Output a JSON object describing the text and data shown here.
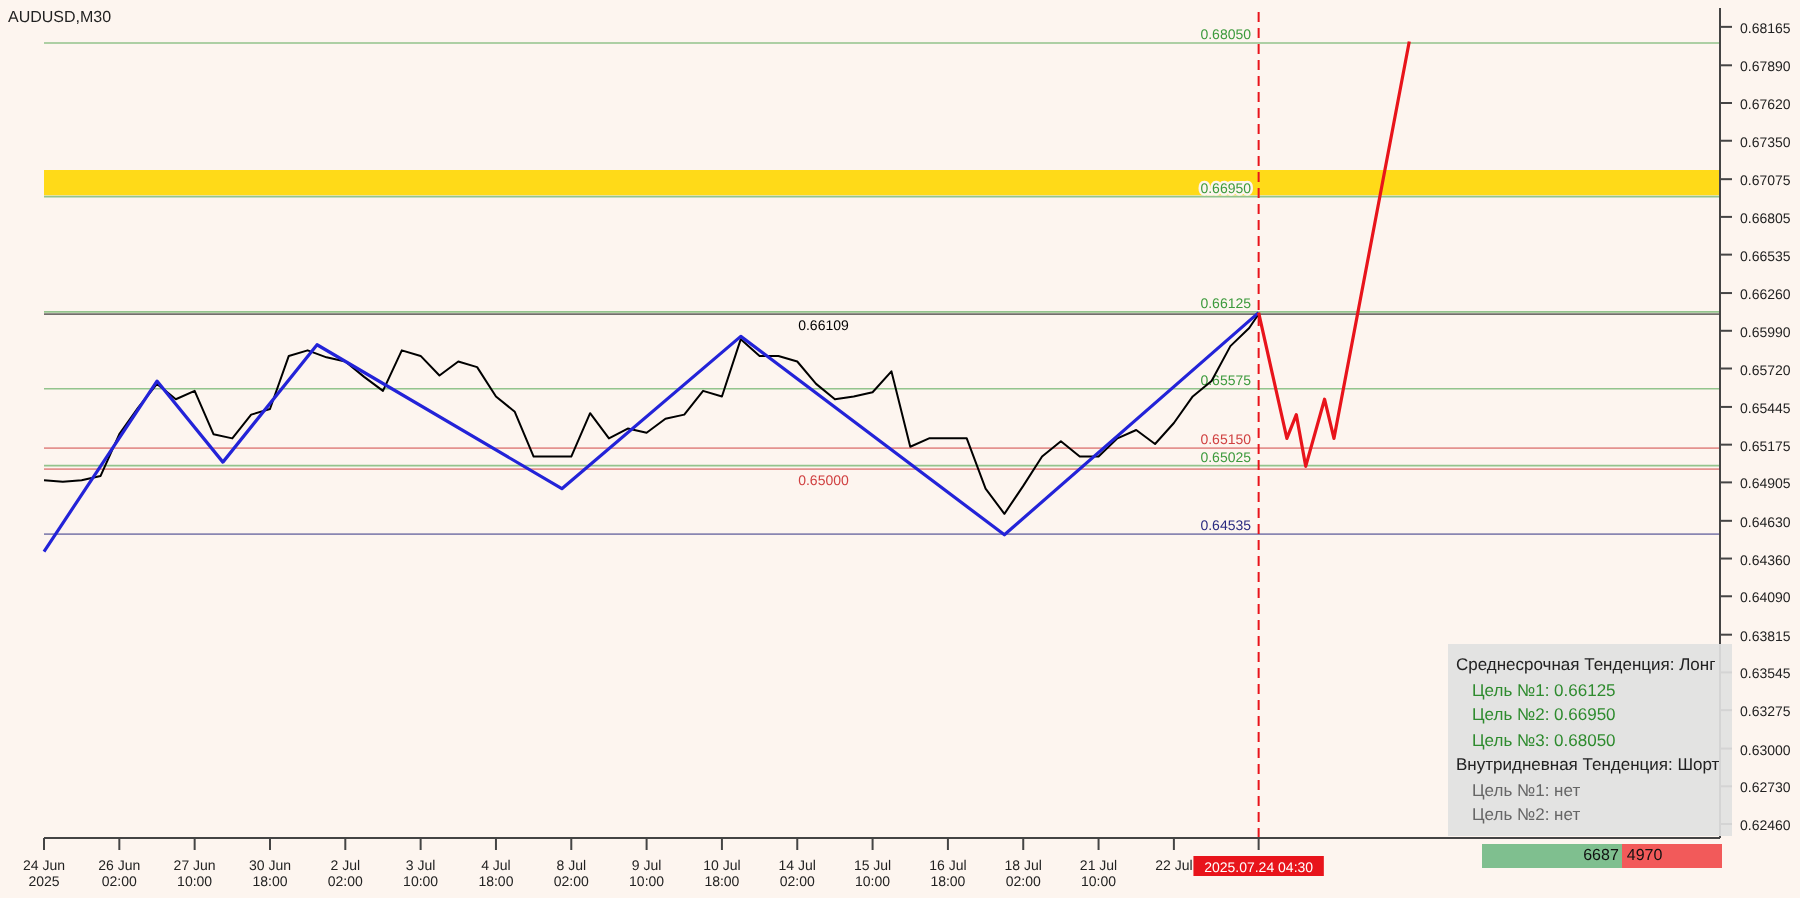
{
  "chart_data": {
    "type": "line",
    "title": "AUDUSD,M30",
    "categories": [
      "24 Jun 2025",
      null,
      null,
      null,
      null,
      null,
      null,
      null,
      "26 Jun 02:00",
      null,
      null,
      null,
      null,
      null,
      null,
      null,
      "27 Jun 10:00",
      null,
      null,
      null,
      null,
      null,
      null,
      null,
      "30 Jun 18:00",
      null,
      null,
      null,
      null,
      null,
      null,
      null,
      "2 Jul 02:00",
      null,
      null,
      null,
      null,
      null,
      null,
      null,
      "3 Jul 10:00",
      null,
      null,
      null,
      null,
      null,
      null,
      null,
      "4 Jul 18:00",
      null,
      null,
      null,
      null,
      null,
      null,
      null,
      "8 Jul 02:00",
      null,
      null,
      null,
      null,
      null,
      null,
      null,
      "9 Jul 10:00",
      null,
      null,
      null,
      null,
      null,
      null,
      null,
      "10 Jul 18:00",
      null,
      null,
      null,
      null,
      null,
      null,
      null,
      "14 Jul 02:00",
      null,
      null,
      null,
      null,
      null,
      null,
      null,
      "15 Jul 10:00",
      null,
      null,
      null,
      null,
      null,
      null,
      null,
      "16 Jul 18:00",
      null,
      null,
      null,
      null,
      null,
      null,
      null,
      "18 Jul 02:00",
      null,
      null,
      null,
      null,
      null,
      null,
      null,
      "21 Jul 10:00",
      null,
      null,
      null,
      null,
      null,
      null,
      null,
      "22 Jul",
      null,
      null,
      null,
      null,
      null,
      null,
      null,
      null,
      "2025.07.24 04:30",
      null,
      null,
      null,
      null,
      null,
      null,
      null,
      null,
      null,
      null,
      null,
      null,
      null,
      null,
      null,
      null,
      null,
      null,
      null,
      null,
      null,
      null,
      null,
      null,
      null,
      null,
      null,
      null,
      null,
      null,
      null,
      null,
      null,
      null,
      null,
      null,
      null,
      null,
      null,
      null,
      null,
      null,
      null,
      null,
      null,
      null,
      null,
      null,
      null
    ],
    "ylim": [
      0.6236,
      0.683
    ],
    "yticks": [
      {
        "value": 0.68165,
        "label": "0.68165"
      },
      {
        "value": 0.6789,
        "label": "0.67890"
      },
      {
        "value": 0.6762,
        "label": "0.67620"
      },
      {
        "value": 0.6735,
        "label": "0.67350"
      },
      {
        "value": 0.67075,
        "label": "0.67075"
      },
      {
        "value": 0.66805,
        "label": "0.66805"
      },
      {
        "value": 0.66535,
        "label": "0.66535"
      },
      {
        "value": 0.6626,
        "label": "0.66260"
      },
      {
        "value": 0.6599,
        "label": "0.65990"
      },
      {
        "value": 0.6572,
        "label": "0.65720"
      },
      {
        "value": 0.65445,
        "label": "0.65445"
      },
      {
        "value": 0.65175,
        "label": "0.65175"
      },
      {
        "value": 0.64905,
        "label": "0.64905"
      },
      {
        "value": 0.6463,
        "label": "0.64630"
      },
      {
        "value": 0.6436,
        "label": "0.64360"
      },
      {
        "value": 0.6409,
        "label": "0.64090"
      },
      {
        "value": 0.63815,
        "label": "0.63815"
      },
      {
        "value": 0.63545,
        "label": "0.63545"
      },
      {
        "value": 0.63275,
        "label": "0.63275"
      },
      {
        "value": 0.63,
        "label": "0.63000"
      },
      {
        "value": 0.6273,
        "label": "0.62730"
      },
      {
        "value": 0.6246,
        "label": "0.62460"
      }
    ],
    "series": [
      {
        "color": "#000000",
        "values": [
          0.6492,
          null,
          0.6491,
          null,
          0.6492,
          null,
          0.6495,
          null,
          0.6525,
          null,
          0.6544,
          null,
          0.6561,
          null,
          0.655,
          null,
          0.6556,
          null,
          0.6525,
          null,
          0.6522,
          null,
          0.6539,
          null,
          0.6543,
          null,
          0.6581,
          null,
          0.6585,
          null,
          0.658,
          null,
          0.6577,
          null,
          0.6566,
          null,
          0.6556,
          null,
          0.6585,
          null,
          0.6581,
          null,
          0.6567,
          null,
          0.6577,
          null,
          0.6573,
          null,
          0.6552,
          null,
          0.6541,
          null,
          0.6509,
          null,
          0.6509,
          null,
          0.6509,
          null,
          0.654,
          null,
          0.6522,
          null,
          0.6529,
          null,
          0.6526,
          null,
          0.6536,
          null,
          0.6539,
          null,
          0.6556,
          null,
          0.6552,
          null,
          0.6593,
          null,
          0.6581,
          null,
          0.6581,
          null,
          0.6577,
          null,
          0.6561,
          null,
          0.655,
          null,
          0.6552,
          null,
          0.6555,
          null,
          0.657,
          null,
          0.6516,
          null,
          0.6522,
          null,
          0.6522,
          null,
          0.6522,
          null,
          0.6486,
          null,
          0.6468,
          null,
          0.6488,
          null,
          0.6509,
          null,
          0.652,
          null,
          0.6509,
          null,
          0.6509,
          null,
          0.6522,
          null,
          0.6528,
          null,
          0.6518,
          null,
          0.6533,
          null,
          0.6552,
          null,
          0.6563,
          null,
          0.6588,
          null,
          0.6601,
          0.6611,
          null,
          null,
          null,
          null,
          null,
          null,
          null,
          null,
          null,
          null,
          null,
          null,
          null,
          null,
          null,
          null,
          null,
          null,
          null,
          null,
          null,
          null,
          null,
          null,
          null,
          null,
          null,
          null,
          null,
          null,
          null,
          null,
          null,
          null,
          null,
          null,
          null,
          null,
          null,
          null,
          null,
          null,
          null,
          null,
          null,
          null,
          null,
          null,
          null
        ]
      },
      {
        "color": "#2323d8",
        "values": [
          0.6441,
          null,
          null,
          null,
          null,
          null,
          null,
          null,
          null,
          null,
          null,
          null,
          0.6563,
          null,
          null,
          null,
          null,
          null,
          null,
          0.6505,
          null,
          null,
          null,
          null,
          null,
          null,
          null,
          null,
          null,
          0.6589,
          null,
          null,
          null,
          null,
          null,
          null,
          null,
          null,
          null,
          null,
          null,
          null,
          null,
          null,
          null,
          null,
          null,
          null,
          null,
          null,
          null,
          null,
          null,
          null,
          null,
          0.6486,
          null,
          null,
          null,
          null,
          null,
          null,
          null,
          null,
          null,
          null,
          null,
          null,
          null,
          null,
          null,
          null,
          null,
          null,
          0.6595,
          null,
          null,
          null,
          null,
          null,
          null,
          null,
          null,
          null,
          null,
          null,
          null,
          null,
          null,
          null,
          null,
          null,
          null,
          null,
          null,
          null,
          null,
          null,
          null,
          null,
          null,
          null,
          0.6453,
          null,
          null,
          null,
          null,
          null,
          null,
          null,
          null,
          null,
          null,
          null,
          null,
          null,
          null,
          null,
          null,
          null,
          null,
          null,
          null,
          null,
          null,
          null,
          null,
          null,
          null,
          0.6612,
          null,
          null,
          null,
          null,
          null,
          null,
          null,
          null,
          null,
          null,
          null,
          null,
          null,
          null,
          null,
          null,
          null,
          null,
          null,
          null,
          null,
          null,
          null,
          null,
          null,
          null,
          null,
          null,
          null,
          null,
          null,
          null,
          null,
          null,
          null,
          null,
          null,
          null,
          null,
          null,
          null,
          null,
          null,
          null,
          null,
          null,
          null,
          null,
          null
        ]
      },
      {
        "color": "#e8141b",
        "values": [
          null,
          null,
          null,
          null,
          null,
          null,
          null,
          null,
          null,
          null,
          null,
          null,
          null,
          null,
          null,
          null,
          null,
          null,
          null,
          null,
          null,
          null,
          null,
          null,
          null,
          null,
          null,
          null,
          null,
          null,
          null,
          null,
          null,
          null,
          null,
          null,
          null,
          null,
          null,
          null,
          null,
          null,
          null,
          null,
          null,
          null,
          null,
          null,
          null,
          null,
          null,
          null,
          null,
          null,
          null,
          null,
          null,
          null,
          null,
          null,
          null,
          null,
          null,
          null,
          null,
          null,
          null,
          null,
          null,
          null,
          null,
          null,
          null,
          null,
          null,
          null,
          null,
          null,
          null,
          null,
          null,
          null,
          null,
          null,
          null,
          null,
          null,
          null,
          null,
          null,
          null,
          null,
          null,
          null,
          null,
          null,
          null,
          null,
          null,
          null,
          null,
          null,
          null,
          null,
          null,
          null,
          null,
          null,
          null,
          null,
          null,
          null,
          null,
          null,
          null,
          null,
          null,
          null,
          null,
          null,
          null,
          null,
          null,
          null,
          null,
          null,
          null,
          null,
          null,
          0.6612,
          null,
          null,
          0.6522,
          0.6539,
          0.6502,
          null,
          0.655,
          0.6522,
          null,
          null,
          null,
          null,
          null,
          null,
          null,
          0.6806,
          null,
          null,
          null,
          null,
          null,
          null,
          null,
          null,
          null,
          null,
          null,
          null,
          null,
          null,
          null,
          null,
          null,
          null,
          null,
          null,
          null,
          null,
          null,
          null,
          null,
          null,
          null,
          null,
          null,
          null,
          null,
          null,
          null
        ]
      }
    ],
    "ref_lines": [
      {
        "axis": "y",
        "value": 0.6805,
        "label": "0.68050",
        "color": "#3c9a3c"
      },
      {
        "axis": "y",
        "value": 0.6695,
        "label": "0.66950",
        "color": "#3c9a3c"
      },
      {
        "axis": "y",
        "value": 0.66125,
        "label": "0.66125",
        "color": "#3c9a3c"
      },
      {
        "axis": "y",
        "value": 0.65575,
        "label": "0.65575",
        "color": "#3c9a3c"
      },
      {
        "axis": "y",
        "value": 0.65025,
        "label": "0.65025",
        "color": "#3c9a3c"
      },
      {
        "axis": "y",
        "value": 0.64535,
        "label": "0.64535",
        "color": "#2a2a80"
      },
      {
        "axis": "y",
        "value": 0.6515,
        "label": "0.65150",
        "color": "#d04040"
      },
      {
        "axis": "y",
        "value": 0.65,
        "label": "0.65000",
        "color": "#d04040"
      },
      {
        "axis": "y",
        "value": 0.66109,
        "label": "0.66109",
        "color": "#000000"
      },
      {
        "axis": "x",
        "value": "2025.07.24 04:30",
        "color": "#e8141b",
        "line_style": "dashed"
      }
    ],
    "bands": [
      {
        "axis": "y",
        "from": 0.6696,
        "to": 0.6714,
        "color": "#ffd700"
      }
    ],
    "annotations": [
      "Среднесрочная Тенденция: Лонг",
      "Цель №1: 0.66125",
      "Цель №2: 0.66950",
      "Цель №3: 0.68050",
      "Внутридневная Тенденция: Шорт",
      "Цель №1: нет",
      "Цель №2: нет",
      "6687",
      "4970"
    ]
  }
}
